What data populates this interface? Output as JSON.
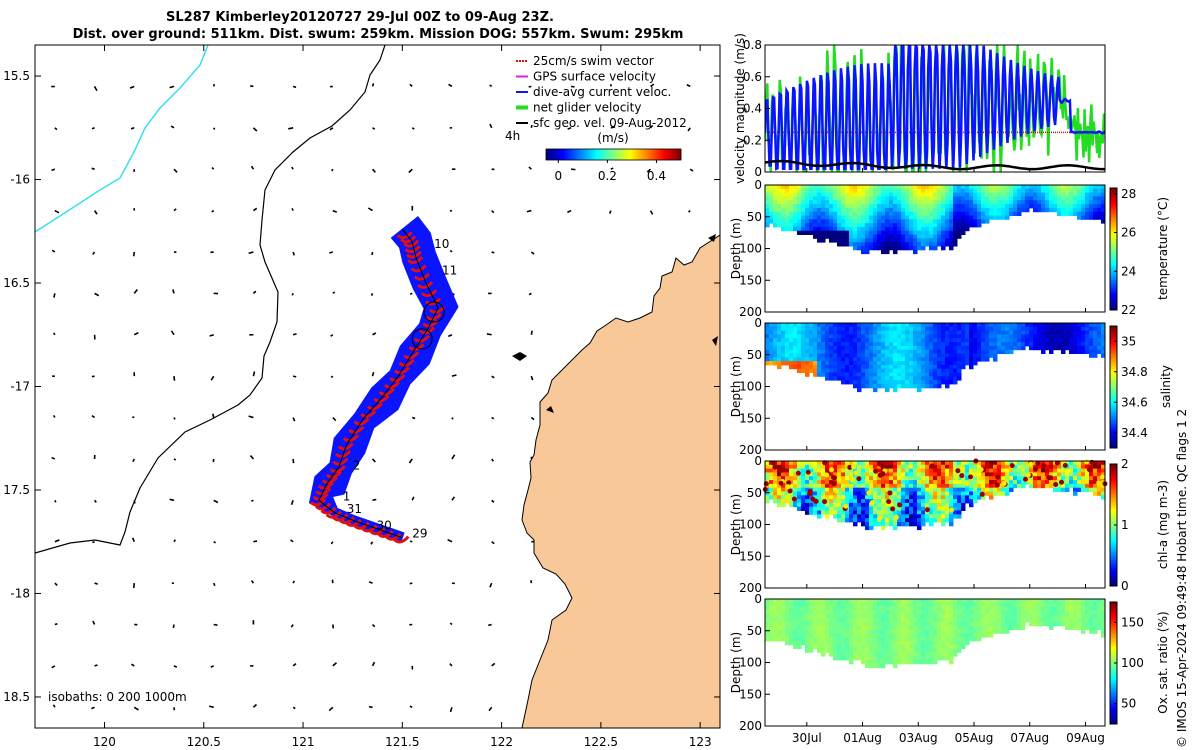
{
  "figure": {
    "title_line1": "SL287 Kimberley20120727 29-Jul 00Z to 09-Aug 23Z.",
    "title_line2": "Dist. over ground: 511km. Dist. swum: 259km. Mission DOG: 557km. Swum: 295km",
    "credit": "© IMOS 15-Apr-2024 09:49:48 Hobart time. QC flags 1  2",
    "colors": {
      "land": "#f9c898",
      "track_blue": "#0a14ff",
      "track_red": "#e01010",
      "coast": "#000000",
      "isobath_cyan": "#35e0f0"
    }
  },
  "chart_data": [
    {
      "type": "scatter",
      "name": "map",
      "xlim": [
        119.65,
        123.1
      ],
      "ylim": [
        -18.65,
        -15.35
      ],
      "xticks": [
        120,
        120.5,
        121,
        121.5,
        122,
        122.5,
        123
      ],
      "xtick_labels": [
        "120",
        "120.5",
        "121",
        "121.5",
        "122",
        "122.5",
        "123"
      ],
      "yticks": [
        -15.5,
        -16,
        -16.5,
        -17,
        -17.5,
        -18,
        -18.5
      ],
      "ytick_labels": [
        "15.5",
        "-16",
        "16.5",
        "-17",
        "17.5",
        "-18",
        "18.5"
      ],
      "isobaths_label": "isobaths: 0   200  1000m",
      "colorbar": {
        "title": "(m/s)",
        "annotation": "4h",
        "ticks": [
          0,
          0.2,
          0.4
        ],
        "tick_labels": [
          "0",
          "0.2",
          "0.4"
        ],
        "range": [
          -0.05,
          0.5
        ]
      },
      "legend": [
        {
          "label": "25cm/s swim vector",
          "color": "#e01010"
        },
        {
          "label": "GPS surface velocity",
          "color": "#e020e0"
        },
        {
          "label": "dive-avg current veloc.",
          "color": "#0a14ff"
        },
        {
          "label": "net glider velocity",
          "color": "#22dd22"
        },
        {
          "label": "sfc geo. vel. 09-Aug-2012",
          "color": "#000000"
        }
      ],
      "day_labels": [
        {
          "text": "10",
          "lon": 121.66,
          "lat": -16.33
        },
        {
          "text": "11",
          "lon": 121.7,
          "lat": -16.46
        },
        {
          "text": "2",
          "lon": 121.25,
          "lat": -17.4
        },
        {
          "text": "1",
          "lon": 121.2,
          "lat": -17.55
        },
        {
          "text": "31",
          "lon": 121.22,
          "lat": -17.61
        },
        {
          "text": "30",
          "lon": 121.37,
          "lat": -17.69
        },
        {
          "text": "29",
          "lon": 121.55,
          "lat": -17.73
        }
      ],
      "track": [
        [
          121.5,
          -17.73
        ],
        [
          121.38,
          -17.69
        ],
        [
          121.26,
          -17.65
        ],
        [
          121.16,
          -17.61
        ],
        [
          121.08,
          -17.55
        ],
        [
          121.12,
          -17.47
        ],
        [
          121.18,
          -17.39
        ],
        [
          121.22,
          -17.28
        ],
        [
          121.3,
          -17.16
        ],
        [
          121.4,
          -17.05
        ],
        [
          121.48,
          -16.95
        ],
        [
          121.55,
          -16.84
        ],
        [
          121.63,
          -16.72
        ],
        [
          121.68,
          -16.62
        ],
        [
          121.62,
          -16.5
        ],
        [
          121.57,
          -16.38
        ],
        [
          121.55,
          -16.3
        ],
        [
          121.5,
          -16.24
        ]
      ]
    },
    {
      "type": "line",
      "name": "velocity",
      "ylabel": "velocity magnitude (m/s)",
      "ylim": [
        0,
        0.8
      ],
      "yticks": [
        0,
        0.2,
        0.4,
        0.6,
        0.8
      ],
      "ytick_labels": [
        "0",
        "0.2",
        "0.4",
        "0.6",
        "0.8"
      ],
      "series": [
        {
          "name": "net glider velocity",
          "color": "#22dd22"
        },
        {
          "name": "dive-avg current veloc.",
          "color": "#0a14ff"
        },
        {
          "name": "25cm/s swim vector",
          "color": "#e01010",
          "value": 0.25
        },
        {
          "name": "sfc geo. vel.",
          "color": "#000000"
        }
      ]
    },
    {
      "type": "heatmap",
      "name": "temperature",
      "ylabel": "Depth (m)",
      "ylim": [
        200,
        0
      ],
      "yticks": [
        0,
        50,
        100,
        150,
        200
      ],
      "cbar_label": "temperature (°C)",
      "cbar_ticks": [
        22,
        24,
        26,
        28
      ],
      "cbar_range": [
        22,
        28.3
      ]
    },
    {
      "type": "heatmap",
      "name": "salinity",
      "ylabel": "Depth (m)",
      "ylim": [
        200,
        0
      ],
      "yticks": [
        0,
        50,
        100,
        150,
        200
      ],
      "cbar_label": "salinity",
      "cbar_ticks": [
        34.4,
        34.6,
        34.8,
        35
      ],
      "cbar_tick_labels": [
        "34.4",
        "34.6",
        "34.8",
        "35"
      ],
      "cbar_range": [
        34.3,
        35.1
      ]
    },
    {
      "type": "heatmap",
      "name": "chla",
      "ylabel": "Depth (m)",
      "ylim": [
        200,
        0
      ],
      "yticks": [
        0,
        50,
        100,
        150,
        200
      ],
      "cbar_label": "chl-a (mg m-3)",
      "cbar_ticks": [
        0,
        1,
        2
      ],
      "cbar_range": [
        0,
        2
      ]
    },
    {
      "type": "heatmap",
      "name": "oxygen",
      "ylabel": "Depth (m)",
      "ylim": [
        200,
        0
      ],
      "yticks": [
        0,
        50,
        100,
        150,
        200
      ],
      "xtick_labels": [
        "30Jul",
        "01Aug",
        "03Aug",
        "05Aug",
        "07Aug",
        "09Aug"
      ],
      "xticks_days": [
        1.5,
        3.5,
        5.5,
        7.5,
        9.5,
        11.5
      ],
      "xlim_days": [
        0,
        12.2
      ],
      "cbar_label": "Ox. sat. ratio (%)",
      "cbar_ticks": [
        50,
        100,
        150
      ],
      "cbar_range": [
        25,
        175
      ]
    }
  ]
}
